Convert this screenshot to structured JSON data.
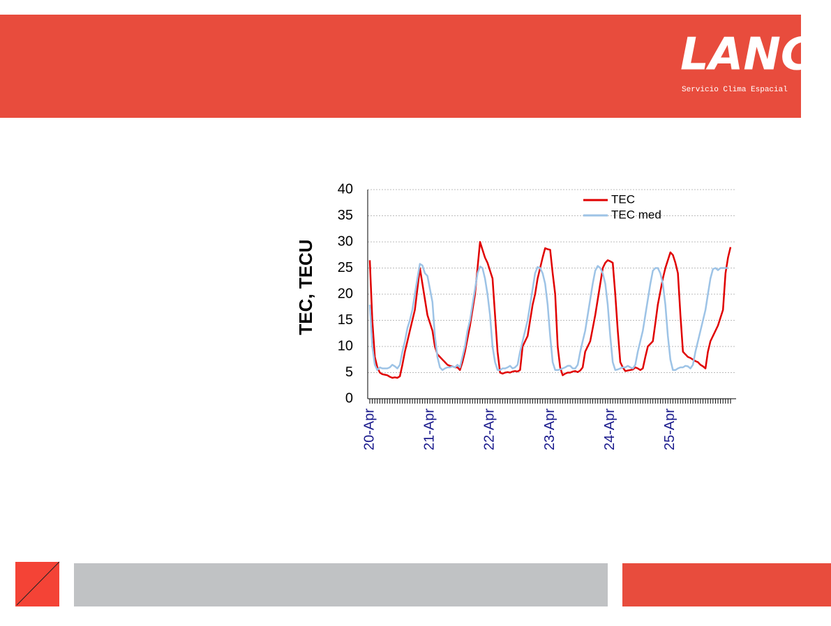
{
  "header": {
    "logo": "LANC",
    "tagline": "Servicio Clima Espacial"
  },
  "chart_data": {
    "type": "line",
    "y_label": "TEC, TECU",
    "categories": [
      "20-Apr",
      null,
      null,
      null,
      null,
      null,
      null,
      null,
      null,
      null,
      null,
      null,
      null,
      null,
      null,
      null,
      null,
      null,
      null,
      null,
      null,
      null,
      null,
      null,
      "21-Apr",
      null,
      null,
      null,
      null,
      null,
      null,
      null,
      null,
      null,
      null,
      null,
      null,
      null,
      null,
      null,
      null,
      null,
      null,
      null,
      null,
      null,
      null,
      null,
      "22-Apr",
      null,
      null,
      null,
      null,
      null,
      null,
      null,
      null,
      null,
      null,
      null,
      null,
      null,
      null,
      null,
      null,
      null,
      null,
      null,
      null,
      null,
      null,
      null,
      "23-Apr",
      null,
      null,
      null,
      null,
      null,
      null,
      null,
      null,
      null,
      null,
      null,
      null,
      null,
      null,
      null,
      null,
      null,
      null,
      null,
      null,
      null,
      null,
      null,
      "24-Apr",
      null,
      null,
      null,
      null,
      null,
      null,
      null,
      null,
      null,
      null,
      null,
      null,
      null,
      null,
      null,
      null,
      null,
      null,
      null,
      null,
      null,
      null,
      null,
      "25-Apr",
      null,
      null,
      null,
      null,
      null,
      null,
      null,
      null,
      null,
      null,
      null,
      null,
      null,
      null,
      null,
      null,
      null,
      null,
      null,
      null,
      null,
      null,
      null,
      null
    ],
    "series": [
      {
        "name": "TEC",
        "color": "#e00000",
        "values": [
          26.5,
          15,
          8,
          6,
          5,
          4.7,
          4.6,
          4.5,
          4.2,
          4,
          4.1,
          4,
          4.3,
          6.5,
          9,
          11,
          13,
          15,
          17,
          21,
          25,
          22,
          19,
          16,
          14.5,
          13,
          10,
          8.5,
          8,
          7.5,
          7,
          6.5,
          6.3,
          6.2,
          6,
          6,
          5.5,
          7,
          9,
          11.5,
          14,
          17,
          20,
          25,
          30,
          28.5,
          27,
          26,
          24.5,
          23,
          16,
          9,
          5,
          4.8,
          5,
          5.1,
          5,
          5.2,
          5.3,
          5.2,
          5.5,
          10,
          11,
          12,
          15,
          18,
          20,
          23,
          25,
          27,
          28.8,
          28.6,
          28.5,
          24,
          20,
          10,
          6,
          4.5,
          4.8,
          5,
          5,
          5.2,
          5.3,
          5.1,
          5.4,
          6,
          9,
          10,
          11,
          13.5,
          16,
          19,
          22,
          25,
          26,
          26.5,
          26.3,
          26,
          20,
          13,
          7,
          6,
          5.3,
          5.4,
          5.5,
          5.6,
          6,
          5.8,
          5.5,
          5.8,
          8,
          10,
          10.5,
          11,
          14.5,
          18,
          20.5,
          23,
          25,
          26.5,
          28,
          27.5,
          26,
          24,
          16,
          9,
          8.5,
          8,
          7.8,
          7.5,
          7.2,
          7,
          6.5,
          6.2,
          5.8,
          9,
          11,
          12,
          13,
          14,
          15.5,
          17,
          24,
          27,
          29
        ]
      },
      {
        "name": "TEC med",
        "color": "#9dc3e6",
        "values": [
          18,
          10,
          6.5,
          5.5,
          6,
          5.8,
          5.8,
          5.8,
          6,
          6.5,
          6.2,
          5.8,
          6.5,
          9,
          11,
          13.5,
          15,
          17,
          20,
          23,
          25.8,
          25.5,
          24,
          23.5,
          21,
          18.5,
          12,
          8,
          6,
          5.5,
          5.8,
          6,
          6,
          6.2,
          6,
          6.5,
          6,
          8,
          10,
          13,
          15,
          18,
          21,
          24,
          25.3,
          25,
          23,
          20,
          16,
          10,
          7,
          5.5,
          5.5,
          5.8,
          5.8,
          6,
          6.3,
          5.8,
          6,
          6.5,
          9,
          11,
          13,
          15,
          18,
          21,
          24,
          25.2,
          25,
          24,
          22,
          18,
          12,
          7,
          5.5,
          5.5,
          5.6,
          5.8,
          6,
          6.3,
          6.3,
          5.8,
          5.8,
          6.5,
          9,
          11,
          13,
          16,
          19,
          22,
          24.5,
          25.4,
          25,
          24,
          22,
          18,
          12,
          7,
          5.5,
          5.6,
          5.8,
          6,
          6,
          6.3,
          6,
          5.8,
          6.5,
          9,
          11,
          13,
          16,
          19,
          22,
          24.5,
          25,
          25,
          24,
          22,
          18,
          12,
          7.5,
          5.5,
          5.5,
          5.8,
          6,
          6,
          6.3,
          6.2,
          5.8,
          6.5,
          9,
          11,
          13,
          15,
          17,
          20,
          23,
          24.8,
          25,
          24.6,
          25,
          25,
          25,
          25,
          null
        ]
      }
    ],
    "ylim": [
      0,
      40
    ],
    "yticks": [
      0,
      5,
      10,
      15,
      20,
      25,
      30,
      35,
      40
    ],
    "grid": true,
    "legend": "top-right"
  }
}
